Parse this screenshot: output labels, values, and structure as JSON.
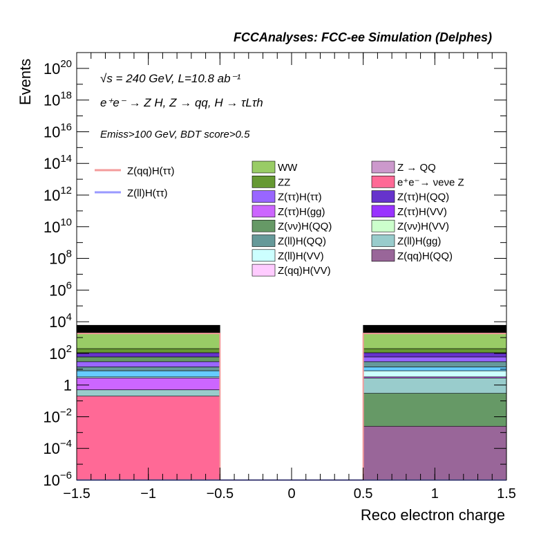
{
  "chart_data": {
    "type": "bar",
    "stacked": true,
    "title": "FCCAnalyses: FCC-ee Simulation (Delphes)",
    "xlabel": "Reco electron charge",
    "ylabel": "Events",
    "yscale": "log",
    "xlim": [
      -1.5,
      1.5
    ],
    "ylim": [
      1e-06,
      1e+21
    ],
    "x_ticks": [
      {
        "value": -1.5,
        "label": "−1.5"
      },
      {
        "value": -1,
        "label": "−1"
      },
      {
        "value": -0.5,
        "label": "−0.5"
      },
      {
        "value": 0,
        "label": "0"
      },
      {
        "value": 0.5,
        "label": "0.5"
      },
      {
        "value": 1,
        "label": "1"
      },
      {
        "value": 1.5,
        "label": "1.5"
      }
    ],
    "y_ticks": [
      {
        "value": 1e-06,
        "base": "10",
        "exp": "−6"
      },
      {
        "value": 0.0001,
        "base": "10",
        "exp": "−4"
      },
      {
        "value": 0.01,
        "base": "10",
        "exp": "−2"
      },
      {
        "value": 1,
        "base": "1",
        "exp": ""
      },
      {
        "value": 100.0,
        "base": "10",
        "exp": "2"
      },
      {
        "value": 10000.0,
        "base": "10",
        "exp": "4"
      },
      {
        "value": 1000000.0,
        "base": "10",
        "exp": "6"
      },
      {
        "value": 100000000.0,
        "base": "10",
        "exp": "8"
      },
      {
        "value": 10000000000.0,
        "base": "10",
        "exp": "10"
      },
      {
        "value": 1000000000000.0,
        "base": "10",
        "exp": "12"
      },
      {
        "value": 100000000000000.0,
        "base": "10",
        "exp": "14"
      },
      {
        "value": 1e+16,
        "base": "10",
        "exp": "16"
      },
      {
        "value": 1e+18,
        "base": "10",
        "exp": "18"
      },
      {
        "value": 1e+20,
        "base": "10",
        "exp": "20"
      }
    ],
    "annotations": {
      "line1": "√s = 240 GeV, L=10.8 ab⁻¹",
      "line2": "e⁺e⁻ → Z H, Z → qq, H → τLτh",
      "line3": "Emiss>100 GeV, BDT score>0.5"
    },
    "bins": [
      [
        -1.5,
        -0.5
      ],
      [
        -0.5,
        0.5
      ],
      [
        0.5,
        1.5
      ]
    ],
    "stack_boundaries": [
      [
        1e-06,
        0.2,
        0.5,
        2.8,
        3.3,
        8,
        14,
        30,
        60,
        110,
        200,
        1800,
        6000
      ],
      [],
      [
        1e-06,
        0.0025,
        0.3,
        2.8,
        3.3,
        8,
        14,
        30,
        60,
        110,
        200,
        1800,
        6000
      ]
    ],
    "stack_colors": [
      [
        "#ff6996",
        "#99cccc",
        "#cc66ff",
        "#ccffff",
        "#66ccff",
        "#669999",
        "#9966ff",
        "#669966",
        "#6633cc",
        "#669933",
        "#99cc66"
      ],
      [],
      [
        "#996699",
        "#669966",
        "#99cccc",
        "#cc66ff",
        "#ccffff",
        "#66ccff",
        "#669999",
        "#9966ff",
        "#6633cc",
        "#669933",
        "#99cc66"
      ]
    ],
    "series": [
      {
        "name": "Z(qq)H(ττ)",
        "style": "line",
        "color": "#f49b9b",
        "values": [
          1800,
          1e-06,
          1800
        ]
      },
      {
        "name": "Z(ll)H(ττ)",
        "style": "line",
        "color": "#9999ff",
        "values": [
          1e-06,
          1e-06,
          1e-06
        ]
      },
      {
        "name": "WW",
        "color": "#99cc66"
      },
      {
        "name": "ZZ",
        "color": "#669933"
      },
      {
        "name": "Z(ττ)H(ττ)",
        "color": "#9966ff"
      },
      {
        "name": "Z(ττ)H(gg)",
        "color": "#cc66ff"
      },
      {
        "name": "Z(νν)H(QQ)",
        "color": "#669966"
      },
      {
        "name": "Z(ll)H(QQ)",
        "color": "#669999"
      },
      {
        "name": "Z(ll)H(VV)",
        "color": "#ccffff"
      },
      {
        "name": "Z(qq)H(VV)",
        "color": "#ffccff"
      },
      {
        "name": "Z → QQ",
        "color": "#cc99cc"
      },
      {
        "name": "e⁺e⁻→ νeνe Z",
        "color": "#ff6996"
      },
      {
        "name": "Z(ττ)H(QQ)",
        "color": "#6633cc"
      },
      {
        "name": "Z(ττ)H(VV)",
        "color": "#9933ff"
      },
      {
        "name": "Z(νν)H(VV)",
        "color": "#ccffcc"
      },
      {
        "name": "Z(ll)H(gg)",
        "color": "#99cccc"
      },
      {
        "name": "Z(qq)H(QQ)",
        "color": "#996699"
      }
    ]
  }
}
